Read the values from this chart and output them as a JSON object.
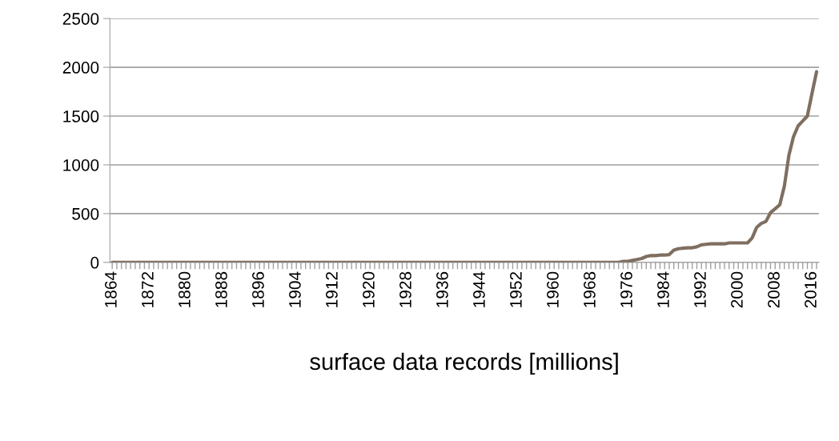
{
  "chart_data": {
    "type": "line",
    "xlabel": "surface data records [millions]",
    "categories": [
      "1864",
      null,
      null,
      null,
      null,
      null,
      null,
      null,
      "1872",
      null,
      null,
      null,
      null,
      null,
      null,
      null,
      "1880",
      null,
      null,
      null,
      null,
      null,
      null,
      null,
      "1888",
      null,
      null,
      null,
      null,
      null,
      null,
      null,
      "1896",
      null,
      null,
      null,
      null,
      null,
      null,
      null,
      "1904",
      null,
      null,
      null,
      null,
      null,
      null,
      null,
      "1912",
      null,
      null,
      null,
      null,
      null,
      null,
      null,
      "1920",
      null,
      null,
      null,
      null,
      null,
      null,
      null,
      "1928",
      null,
      null,
      null,
      null,
      null,
      null,
      null,
      "1936",
      null,
      null,
      null,
      null,
      null,
      null,
      null,
      "1944",
      null,
      null,
      null,
      null,
      null,
      null,
      null,
      "1952",
      null,
      null,
      null,
      null,
      null,
      null,
      null,
      "1960",
      null,
      null,
      null,
      null,
      null,
      null,
      null,
      "1968",
      null,
      null,
      null,
      null,
      null,
      null,
      null,
      "1976",
      null,
      null,
      null,
      null,
      null,
      null,
      null,
      "1984",
      null,
      null,
      null,
      null,
      null,
      null,
      null,
      "1992",
      null,
      null,
      null,
      null,
      null,
      null,
      null,
      "2000",
      null,
      null,
      null,
      null,
      null,
      null,
      null,
      "2008",
      null,
      null,
      null,
      null,
      null,
      null,
      null,
      "2016",
      null
    ],
    "series": [
      {
        "color": "#7f6f60",
        "values": [
          0,
          0,
          0,
          0,
          0,
          0,
          0,
          0,
          0,
          0,
          0,
          0,
          0,
          0,
          0,
          0,
          0,
          0,
          0,
          0,
          0,
          0,
          0,
          0,
          0,
          0,
          0,
          0,
          0,
          0,
          0,
          0,
          0,
          0,
          0,
          0,
          0,
          0,
          0,
          0,
          0,
          0,
          0,
          0,
          0,
          0,
          0,
          0,
          0,
          0,
          0,
          0,
          0,
          0,
          0,
          0,
          0,
          0,
          0,
          0,
          0,
          0,
          0,
          0,
          0,
          0,
          0,
          0,
          0,
          0,
          0,
          0,
          0,
          0,
          0,
          0,
          0,
          0,
          0,
          0,
          0,
          0,
          0,
          0,
          0,
          0,
          0,
          0,
          0,
          0,
          0,
          0,
          0,
          0,
          0,
          0,
          0,
          0,
          0,
          0,
          0,
          0,
          0,
          0,
          0,
          0,
          0,
          0,
          0,
          0,
          0,
          10,
          10,
          20,
          30,
          40,
          60,
          70,
          70,
          75,
          75,
          80,
          125,
          140,
          145,
          150,
          150,
          160,
          180,
          185,
          190,
          190,
          190,
          190,
          200,
          200,
          200,
          200,
          200,
          250,
          360,
          400,
          420,
          510,
          550,
          590,
          780,
          1100,
          1290,
          1400,
          1450,
          1500,
          1730,
          1955
        ]
      }
    ],
    "ylim": [
      0,
      2500
    ],
    "yticks": [
      0,
      500,
      1000,
      1500,
      2000,
      2500
    ],
    "grid": "y",
    "marker": "none",
    "line_style": "solid"
  }
}
